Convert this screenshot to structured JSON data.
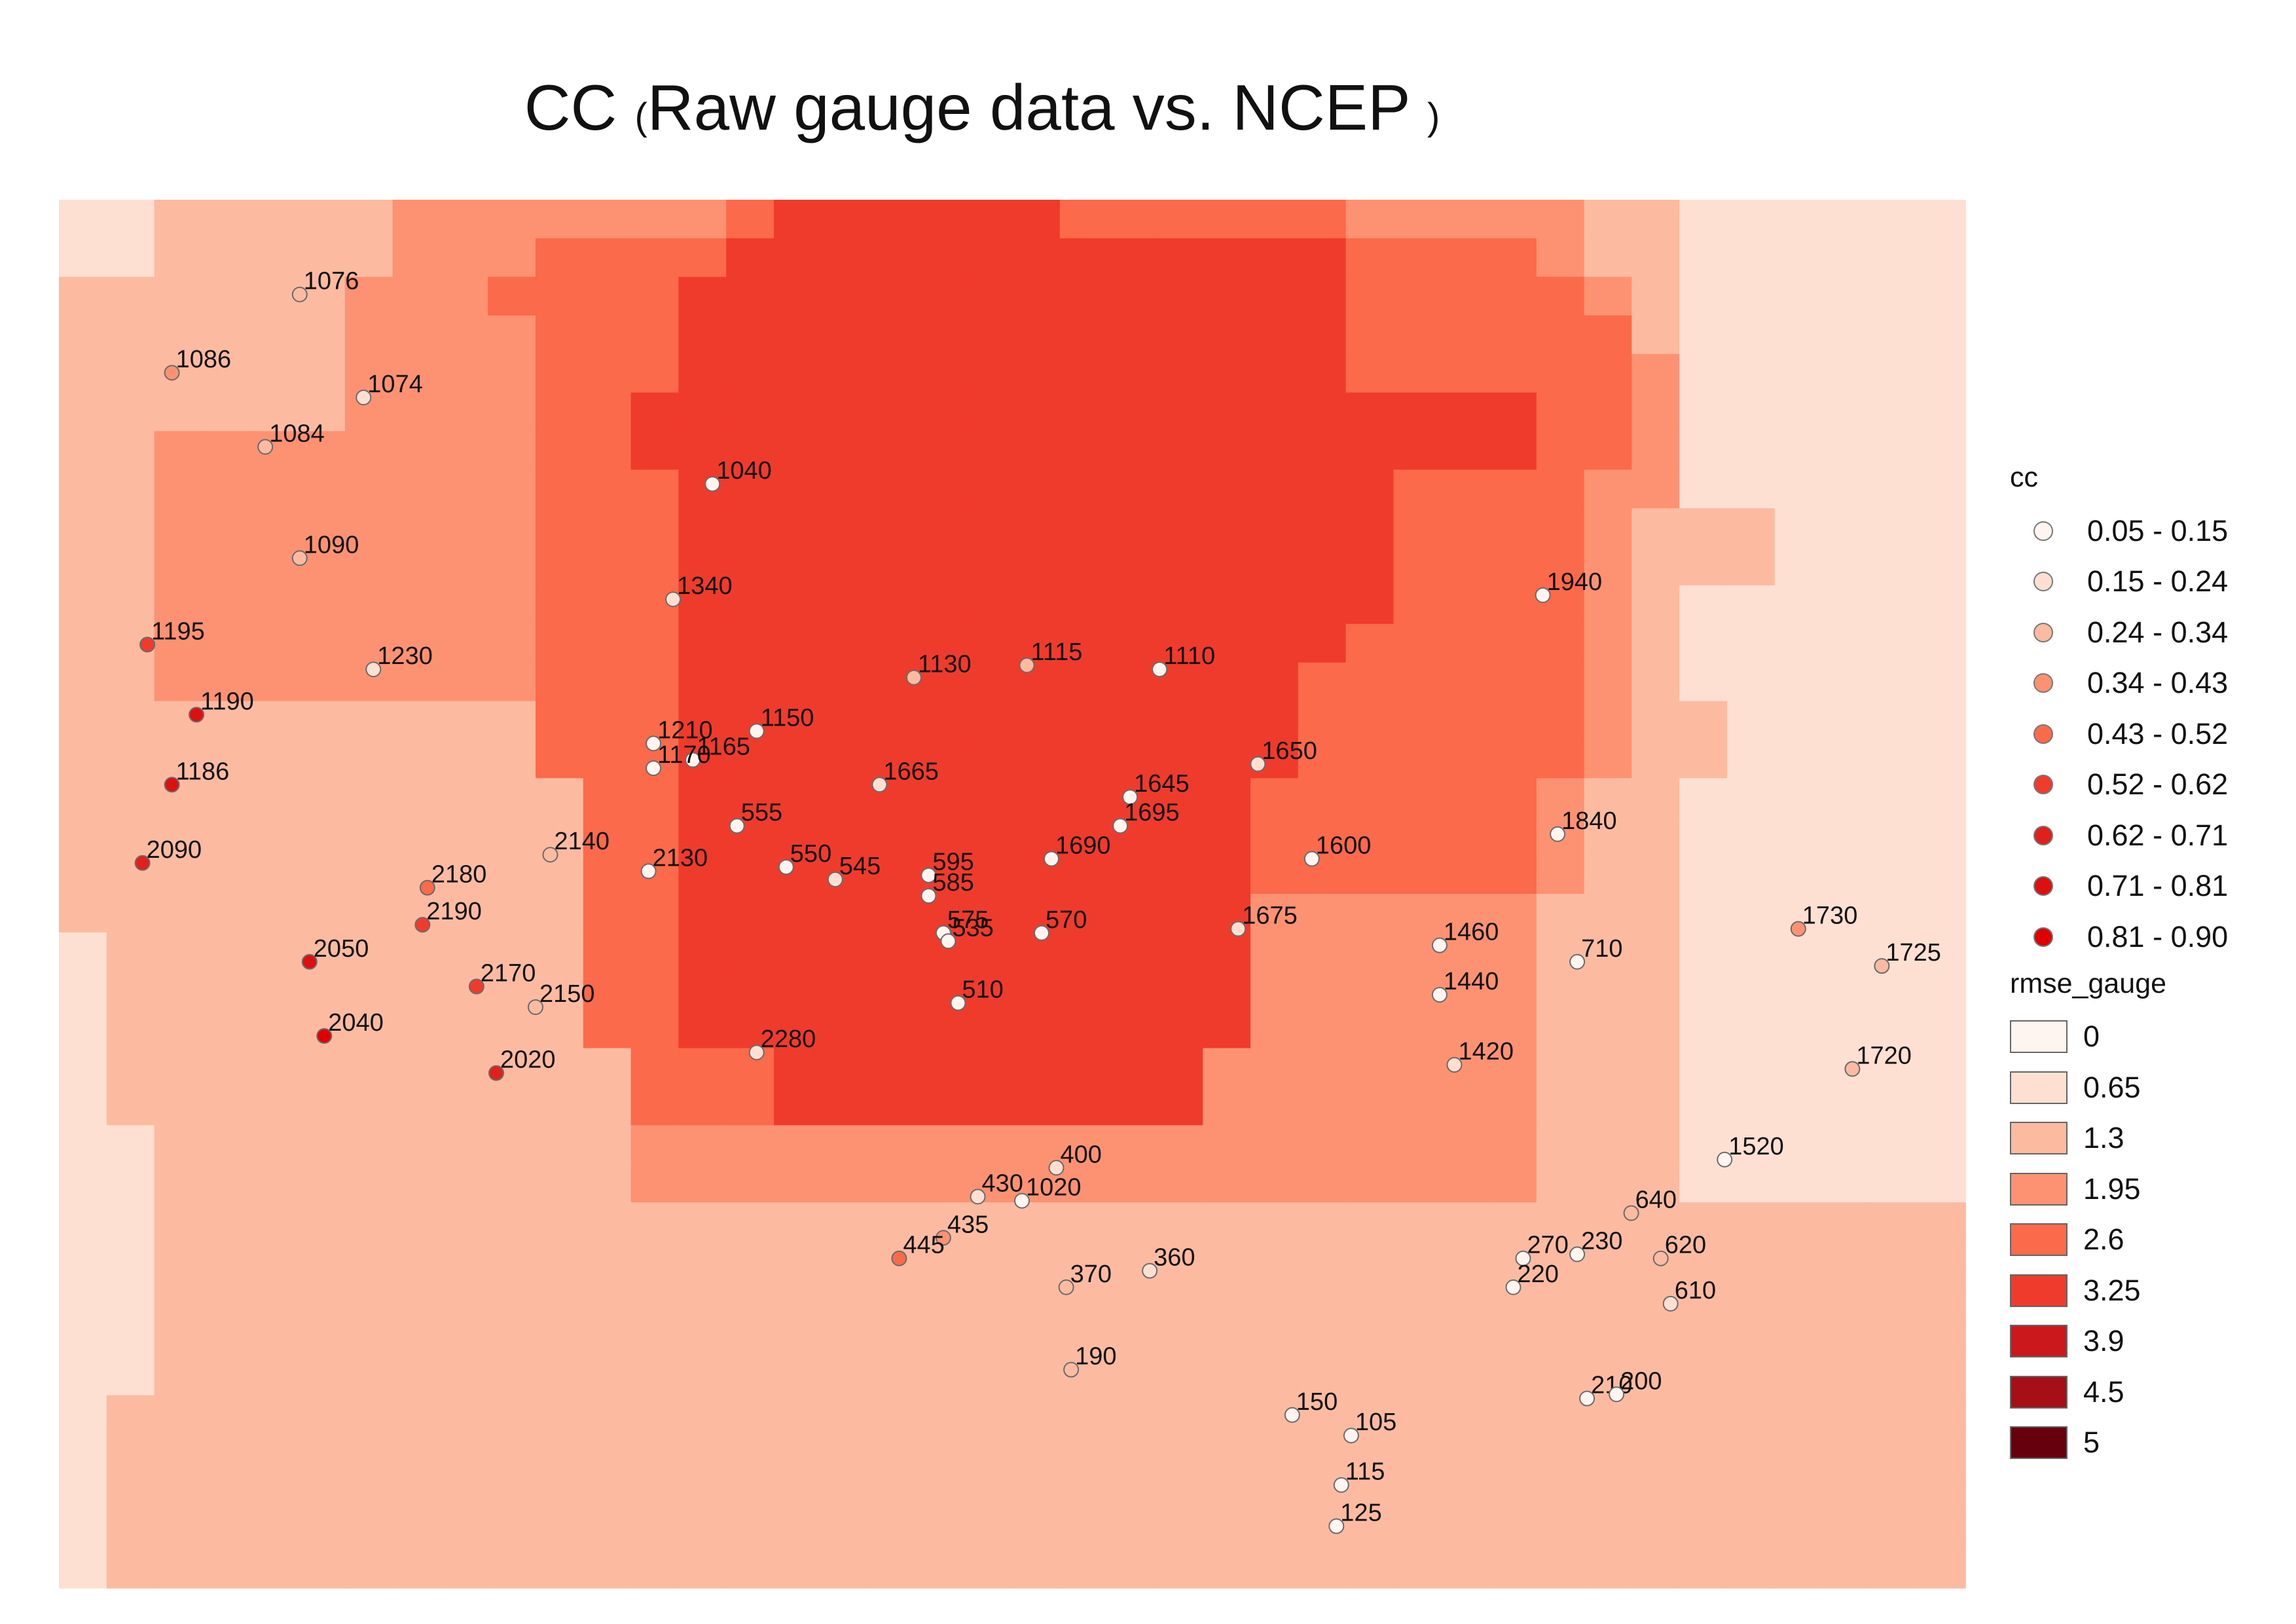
{
  "title": {
    "prefix": "CC",
    "open": "(",
    "main": "Raw gauge data vs. NCEP",
    "close": ")"
  },
  "colors": {
    "rmse_scale": [
      "#fff5f0",
      "#fee0d2",
      "#fcbba1",
      "#fc9272",
      "#fb6a4a",
      "#ef3b2c",
      "#cb181d",
      "#a50f15",
      "#67000d"
    ],
    "cc_scale": [
      "#fff5f0",
      "#fee0d2",
      "#fcbba1",
      "#fc9272",
      "#fb6a4a",
      "#ef3b2c",
      "#e0201b",
      "#dd1010",
      "#e00000"
    ]
  },
  "legend": {
    "cc": {
      "title": "cc",
      "classes": [
        "0.05 - 0.15",
        "0.15 - 0.24",
        "0.24 - 0.34",
        "0.34 - 0.43",
        "0.43 - 0.52",
        "0.52 - 0.62",
        "0.62 - 0.71",
        "0.71 - 0.81",
        "0.81 - 0.90"
      ]
    },
    "rmse": {
      "title": "rmse_gauge",
      "classes": [
        "0",
        "0.65",
        "1.3",
        "1.95",
        "2.6",
        "3.25",
        "3.9",
        "4.5",
        "5"
      ]
    }
  },
  "rmse_grid": [
    "1122222333333345555554444443333322111111",
    "1122222333444455555555555554444322111111",
    "2222223334444555555555555554444432111111",
    "2222223333444555555555555554444442111111",
    "2222223333444555555555555554444443111111",
    "2222223333445555555555555555555443111111",
    "2233333333445555555555555555555443111111",
    "2233333333444555555555555555444433111111",
    "2233333333444555555555555555444432221111",
    "2233333333444555555555555555444432221111",
    "2233333333444555555555555555444432111111",
    "2233333333444555555555555554444432111111",
    "2233333333444555555555555544444432111111",
    "2222222222444555555555555544444432211111",
    "2222222222444555555555555544444432211111",
    "2222222222244555555555555444444322111111",
    "2222222222244555555555555444444322111111",
    "2222222222244555555555555444444322111111",
    "2222222222244555555555555333333222111111",
    "1222222222244555555555555333333222111111",
    "1222222222244555555555555333333222111111",
    "1222222222244555555555555333333222111111",
    "1222222222224445555555553333333222111111",
    "1222222222224445555555553333333222111111",
    "1122222222223333333333333333333222111111",
    "1122222222223333333333333333333222111111",
    "1122222222222222222222222222222222222222",
    "1122222222222222222222222222222222222222",
    "1122222222222222222222222222222222222222",
    "1122222222222222222222222222222222222222",
    "1122222222222222222222222222222222222222",
    "1222222222222222222222222222222222222222",
    "1222222222222222222222222222222222222222",
    "1222222222222222222222222222222222222222",
    "1222222222222222222222222222222222222222",
    "1222222222222222222222222222222222222222"
  ],
  "stations": [
    {
      "label": "1076",
      "lon": 4.9,
      "lat": 15.4,
      "cc": 2
    },
    {
      "label": "1086",
      "lon": 2.3,
      "lat": 13.5,
      "cc": 3
    },
    {
      "label": "1074",
      "lon": 6.2,
      "lat": 12.9,
      "cc": 1
    },
    {
      "label": "1084",
      "lon": 4.2,
      "lat": 11.7,
      "cc": 2
    },
    {
      "label": "1040",
      "lon": 13.3,
      "lat": 10.8,
      "cc": 0
    },
    {
      "label": "1090",
      "lon": 4.9,
      "lat": 9.0,
      "cc": 2
    },
    {
      "label": "1340",
      "lon": 12.5,
      "lat": 8.0,
      "cc": 1
    },
    {
      "label": "1940",
      "lon": 30.2,
      "lat": 8.1,
      "cc": 0
    },
    {
      "label": "1195",
      "lon": 1.8,
      "lat": 6.9,
      "cc": 5
    },
    {
      "label": "1230",
      "lon": 6.4,
      "lat": 6.3,
      "cc": 1
    },
    {
      "label": "1130",
      "lon": 17.4,
      "lat": 6.1,
      "cc": 2
    },
    {
      "label": "1115",
      "lon": 19.7,
      "lat": 6.4,
      "cc": 2
    },
    {
      "label": "1110",
      "lon": 22.4,
      "lat": 6.3,
      "cc": 0
    },
    {
      "label": "1190",
      "lon": 2.8,
      "lat": 5.2,
      "cc": 7
    },
    {
      "label": "1210",
      "lon": 12.1,
      "lat": 4.5,
      "cc": 0
    },
    {
      "label": "1150",
      "lon": 14.2,
      "lat": 4.8,
      "cc": 0
    },
    {
      "label": "1165",
      "lon": 12.9,
      "lat": 4.1,
      "cc": 0
    },
    {
      "label": "1170",
      "lon": 12.1,
      "lat": 3.9,
      "cc": 0
    },
    {
      "label": "1650",
      "lon": 24.4,
      "lat": 4.0,
      "cc": 1
    },
    {
      "label": "1665",
      "lon": 16.7,
      "lat": 3.5,
      "cc": 1
    },
    {
      "label": "1186",
      "lon": 2.3,
      "lat": 3.5,
      "cc": 7
    },
    {
      "label": "1645",
      "lon": 21.8,
      "lat": 3.2,
      "cc": 0
    },
    {
      "label": "1695",
      "lon": 21.6,
      "lat": 2.5,
      "cc": 0
    },
    {
      "label": "555",
      "lon": 13.8,
      "lat": 2.5,
      "cc": 0
    },
    {
      "label": "1840",
      "lon": 30.5,
      "lat": 2.3,
      "cc": 0
    },
    {
      "label": "2090",
      "lon": 1.7,
      "lat": 1.6,
      "cc": 6
    },
    {
      "label": "2140",
      "lon": 10.0,
      "lat": 1.8,
      "cc": 2
    },
    {
      "label": "2130",
      "lon": 12.0,
      "lat": 1.4,
      "cc": 0
    },
    {
      "label": "550",
      "lon": 14.8,
      "lat": 1.5,
      "cc": 0
    },
    {
      "label": "545",
      "lon": 15.8,
      "lat": 1.2,
      "cc": 1
    },
    {
      "label": "595",
      "lon": 17.7,
      "lat": 1.3,
      "cc": 0
    },
    {
      "label": "1690",
      "lon": 20.2,
      "lat": 1.7,
      "cc": 0
    },
    {
      "label": "1600",
      "lon": 25.5,
      "lat": 1.7,
      "cc": 0
    },
    {
      "label": "2180",
      "lon": 7.5,
      "lat": 1.0,
      "cc": 4
    },
    {
      "label": "585",
      "lon": 17.7,
      "lat": 0.8,
      "cc": 0
    },
    {
      "label": "2190",
      "lon": 7.4,
      "lat": 0.1,
      "cc": 5
    },
    {
      "label": "575",
      "lon": 18.0,
      "lat": -0.1,
      "cc": 0
    },
    {
      "label": "570",
      "lon": 20.0,
      "lat": -0.1,
      "cc": 0
    },
    {
      "label": "1675",
      "lon": 24.0,
      "lat": 0.0,
      "cc": 1
    },
    {
      "label": "535",
      "lon": 18.1,
      "lat": -0.3,
      "cc": 0
    },
    {
      "label": "1460",
      "lon": 28.1,
      "lat": -0.4,
      "cc": 0
    },
    {
      "label": "710",
      "lon": 30.9,
      "lat": -0.8,
      "cc": 0
    },
    {
      "label": "1730",
      "lon": 35.4,
      "lat": 0.0,
      "cc": 3
    },
    {
      "label": "1725",
      "lon": 37.1,
      "lat": -0.9,
      "cc": 2
    },
    {
      "label": "2050",
      "lon": 5.1,
      "lat": -0.8,
      "cc": 7
    },
    {
      "label": "2170",
      "lon": 8.5,
      "lat": -1.4,
      "cc": 5
    },
    {
      "label": "2150",
      "lon": 9.7,
      "lat": -1.9,
      "cc": 2
    },
    {
      "label": "1440",
      "lon": 28.1,
      "lat": -1.6,
      "cc": 0
    },
    {
      "label": "510",
      "lon": 18.3,
      "lat": -1.8,
      "cc": 0
    },
    {
      "label": "2040",
      "lon": 5.4,
      "lat": -2.6,
      "cc": 8
    },
    {
      "label": "2280",
      "lon": 14.2,
      "lat": -3.0,
      "cc": 1
    },
    {
      "label": "2020",
      "lon": 8.9,
      "lat": -3.5,
      "cc": 6
    },
    {
      "label": "1420",
      "lon": 28.4,
      "lat": -3.3,
      "cc": 1
    },
    {
      "label": "1720",
      "lon": 36.5,
      "lat": -3.4,
      "cc": 2
    },
    {
      "label": "400",
      "lon": 20.3,
      "lat": -5.8,
      "cc": 1
    },
    {
      "label": "1520",
      "lon": 33.9,
      "lat": -5.6,
      "cc": 0
    },
    {
      "label": "430",
      "lon": 18.7,
      "lat": -6.5,
      "cc": 1
    },
    {
      "label": "1020",
      "lon": 19.6,
      "lat": -6.6,
      "cc": 0
    },
    {
      "label": "640",
      "lon": 32.0,
      "lat": -6.9,
      "cc": 2
    },
    {
      "label": "435",
      "lon": 18.0,
      "lat": -7.5,
      "cc": 3
    },
    {
      "label": "445",
      "lon": 17.1,
      "lat": -8.0,
      "cc": 4
    },
    {
      "label": "270",
      "lon": 29.8,
      "lat": -8.0,
      "cc": 0
    },
    {
      "label": "230",
      "lon": 30.9,
      "lat": -7.9,
      "cc": 0
    },
    {
      "label": "620",
      "lon": 32.6,
      "lat": -8.0,
      "cc": 2
    },
    {
      "label": "360",
      "lon": 22.2,
      "lat": -8.3,
      "cc": 1
    },
    {
      "label": "370",
      "lon": 20.5,
      "lat": -8.7,
      "cc": 2
    },
    {
      "label": "220",
      "lon": 29.6,
      "lat": -8.7,
      "cc": 0
    },
    {
      "label": "610",
      "lon": 32.8,
      "lat": -9.1,
      "cc": 1
    },
    {
      "label": "190",
      "lon": 20.6,
      "lat": -10.7,
      "cc": 2
    },
    {
      "label": "210",
      "lon": 31.1,
      "lat": -11.4,
      "cc": 0
    },
    {
      "label": "200",
      "lon": 31.7,
      "lat": -11.3,
      "cc": 0
    },
    {
      "label": "150",
      "lon": 25.1,
      "lat": -11.8,
      "cc": 0
    },
    {
      "label": "105",
      "lon": 26.3,
      "lat": -12.3,
      "cc": 0
    },
    {
      "label": "115",
      "lon": 26.1,
      "lat": -13.5,
      "cc": 0
    },
    {
      "label": "125",
      "lon": 26.0,
      "lat": -14.5,
      "cc": 0
    }
  ],
  "extent": {
    "lon": [
      0,
      38.8
    ],
    "lat": [
      -16.0,
      17.7
    ]
  }
}
